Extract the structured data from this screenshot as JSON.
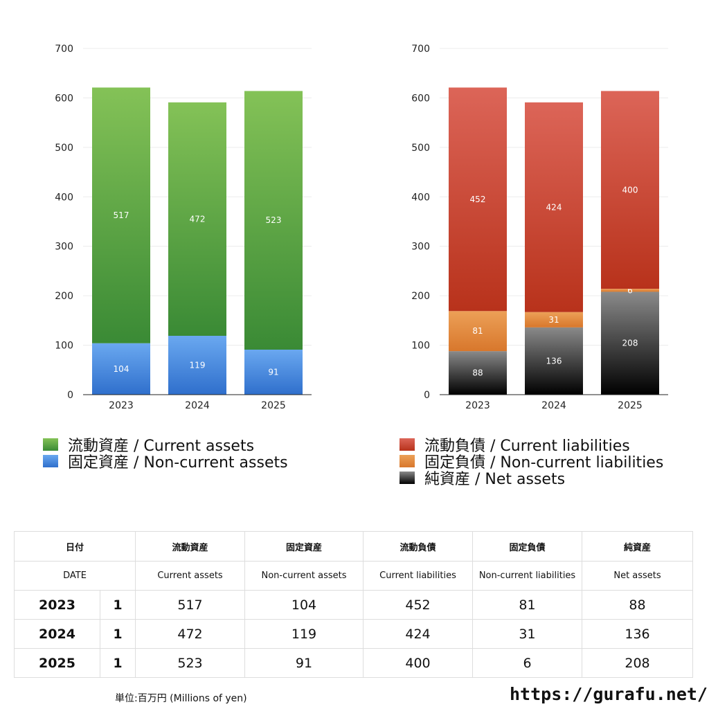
{
  "chart_data": [
    {
      "type": "bar",
      "stacked": true,
      "categories": [
        "2023",
        "2024",
        "2025"
      ],
      "ylim": [
        0,
        700
      ],
      "yticks": [
        "0",
        "100",
        "200",
        "300",
        "400",
        "500",
        "600",
        "700"
      ],
      "grid": true,
      "series": [
        {
          "name": "固定資産 / Non-current assets",
          "values": [
            104,
            119,
            91
          ],
          "color_top": "#6aa8f0",
          "color_bottom": "#2f6fcc"
        },
        {
          "name": "流動資産 / Current assets",
          "values": [
            517,
            472,
            523
          ],
          "color_top": "#84c257",
          "color_bottom": "#3a8a35"
        }
      ]
    },
    {
      "type": "bar",
      "stacked": true,
      "categories": [
        "2023",
        "2024",
        "2025"
      ],
      "ylim": [
        0,
        700
      ],
      "yticks": [
        "0",
        "100",
        "200",
        "300",
        "400",
        "500",
        "600",
        "700"
      ],
      "grid": true,
      "series": [
        {
          "name": "純資産 / Net assets",
          "values": [
            88,
            136,
            208
          ],
          "color_top": "#8a8a8a",
          "color_bottom": "#000000"
        },
        {
          "name": "固定負債 / Non-current liabilities",
          "values": [
            81,
            31,
            6
          ],
          "color_top": "#eca057",
          "color_bottom": "#d8772c"
        },
        {
          "name": "流動負債 / Current liabilities",
          "values": [
            452,
            424,
            400
          ],
          "color_top": "#dc6558",
          "color_bottom": "#b8321b"
        }
      ]
    }
  ],
  "legend_left": [
    {
      "label": "流動資産 / Current assets",
      "color_top": "#84c257",
      "color_bottom": "#3a8a35"
    },
    {
      "label": "固定資産 / Non-current assets",
      "color_top": "#6aa8f0",
      "color_bottom": "#2f6fcc"
    }
  ],
  "legend_right": [
    {
      "label": "流動負債 / Current liabilities",
      "color_top": "#dc6558",
      "color_bottom": "#b8321b"
    },
    {
      "label": "固定負債 / Non-current liabilities",
      "color_top": "#eca057",
      "color_bottom": "#d8772c"
    },
    {
      "label": "純資産 / Net assets",
      "color_top": "#8a8a8a",
      "color_bottom": "#000000"
    }
  ],
  "table": {
    "headers": [
      "日付",
      "流動資産",
      "固定資産",
      "流動負債",
      "固定負債",
      "純資産"
    ],
    "subheaders": [
      "DATE",
      "Current assets",
      "Non-current assets",
      "Current liabilities",
      "Non-current liabilities",
      "Net assets"
    ],
    "rows": [
      {
        "year": "2023",
        "count": "1",
        "values": [
          "517",
          "104",
          "452",
          "81",
          "88"
        ]
      },
      {
        "year": "2024",
        "count": "1",
        "values": [
          "472",
          "119",
          "424",
          "31",
          "136"
        ]
      },
      {
        "year": "2025",
        "count": "1",
        "values": [
          "523",
          "91",
          "400",
          "6",
          "208"
        ]
      }
    ]
  },
  "footer": {
    "unit": "単位:百万円 (Millions of yen)",
    "url": "https://gurafu.net/"
  }
}
